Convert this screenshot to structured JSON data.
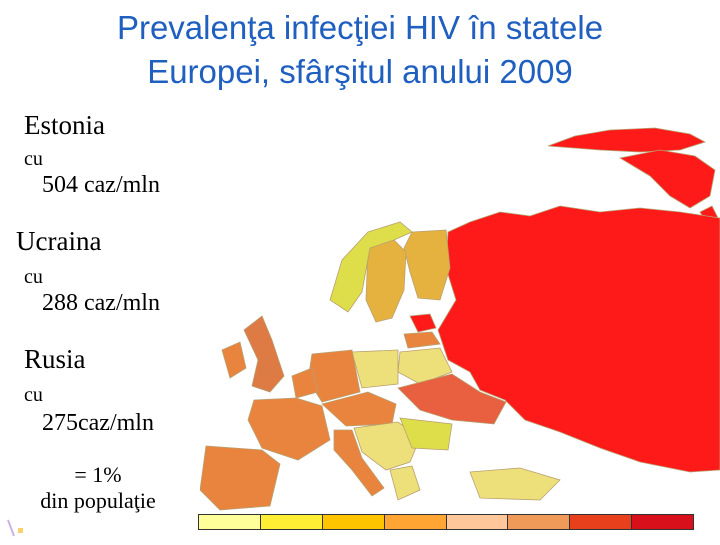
{
  "title": {
    "line1": "Prevalenţa infecţiei HIV în statele",
    "line2": "Europei, sfârşitul anului 2009"
  },
  "stats": [
    {
      "country": "Estonia",
      "prefix": "cu",
      "value": "504 caz/mln"
    },
    {
      "country": "Ucraina",
      "prefix": "cu",
      "value": "288 caz/mln"
    },
    {
      "country": "Rusia",
      "prefix": "cu",
      "value": "275caz/mln"
    }
  ],
  "note": {
    "line1": "= 1%",
    "line2": "din populaţie"
  },
  "legend": {
    "colors": [
      "#ffff99",
      "#ffee33",
      "#ffc400",
      "#ffa533",
      "#ffc79a",
      "#f09a5a",
      "#e8401c",
      "#d8101c"
    ]
  },
  "map": {
    "colors": {
      "russia": "#ff1a1a",
      "ukraine": "#e86040",
      "estonia": "#ff1a1a",
      "west": "#e9843f",
      "uk": "#de7a44",
      "north": "#e6b23f",
      "east_light": "#dede4a",
      "pale": "#ede07a",
      "sea": "#ffffff"
    }
  }
}
